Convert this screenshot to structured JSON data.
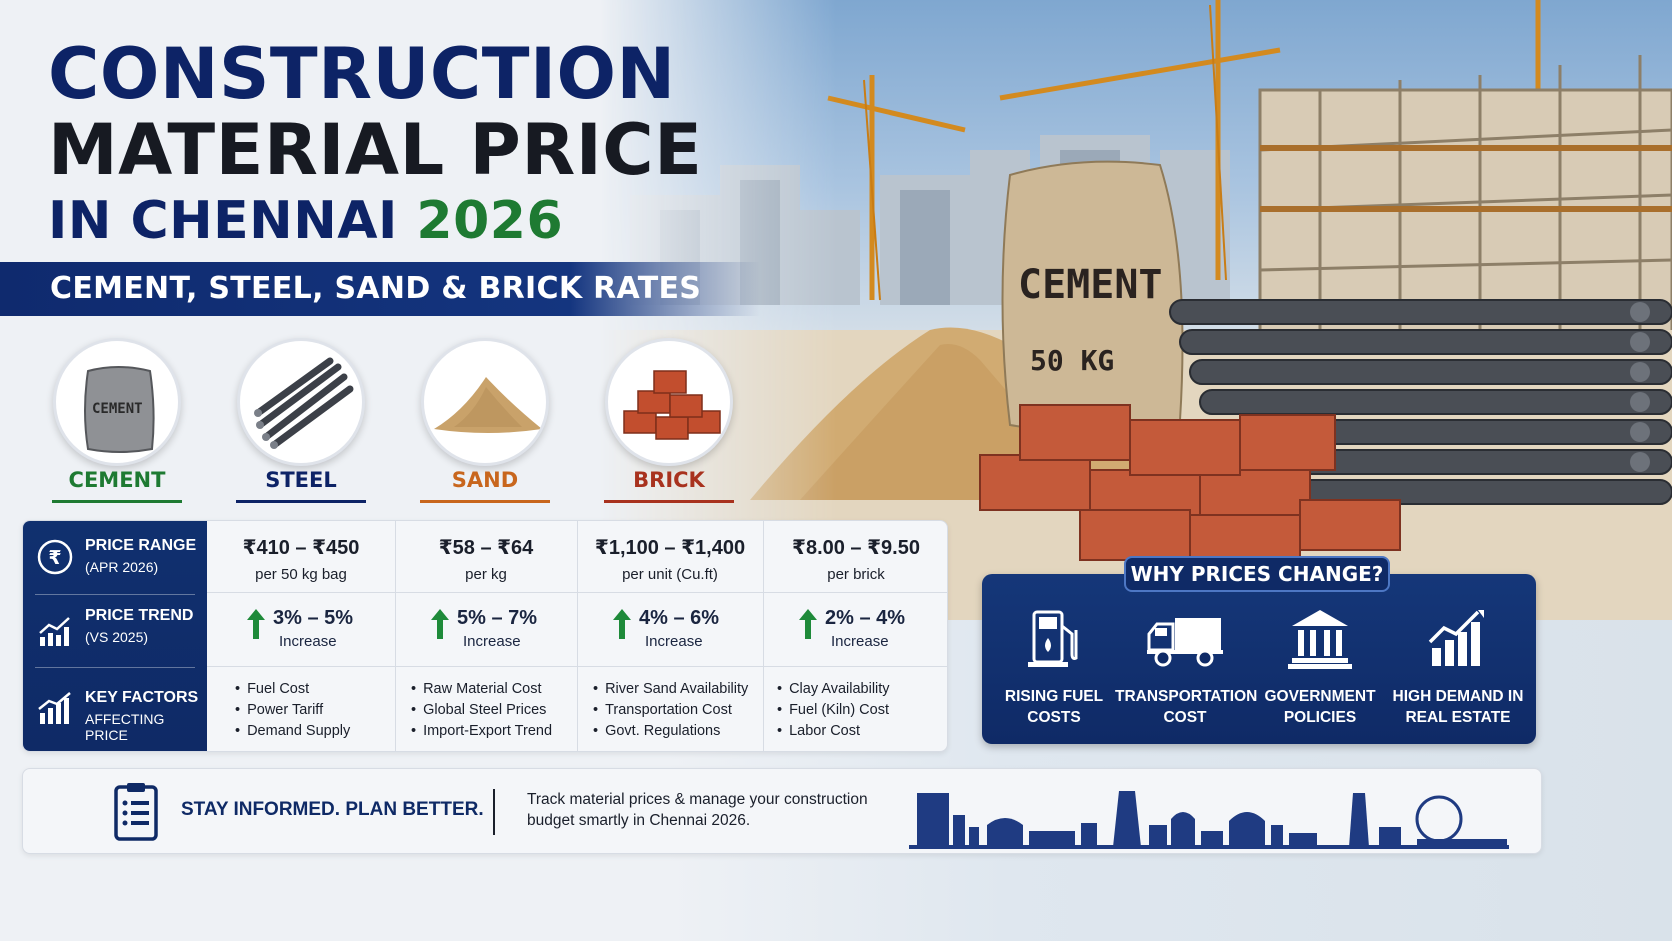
{
  "title": {
    "line1": "CONSTRUCTION",
    "line2": "MATERIAL PRICE",
    "line3_prefix": "IN CHENNAI",
    "line3_year": "2026"
  },
  "subtitle": "CEMENT, STEEL, SAND & BRICK RATES",
  "scene": {
    "cement_bag_text": "CEMENT",
    "cement_bag_weight": "50 KG"
  },
  "materials": [
    {
      "label": "CEMENT",
      "color": "#1e7a32",
      "icon": "cement-bag-icon",
      "bag_text": "CEMENT"
    },
    {
      "label": "STEEL",
      "color": "#0d2366",
      "icon": "steel-rods-icon"
    },
    {
      "label": "SAND",
      "color": "#c8661d",
      "icon": "sand-pile-icon"
    },
    {
      "label": "BRICK",
      "color": "#a8321e",
      "icon": "bricks-icon"
    }
  ],
  "table": {
    "rows": [
      {
        "title": "PRICE RANGE",
        "sub": "(APR 2026)",
        "icon": "rupee-icon"
      },
      {
        "title": "PRICE TREND",
        "sub": "(VS 2025)",
        "icon": "trend-chart-icon"
      },
      {
        "title": "KEY FACTORS",
        "sub": "AFFECTING PRICE",
        "icon": "growth-chart-icon"
      }
    ],
    "prices": [
      {
        "range": "₹410 – ₹450",
        "unit": "per 50 kg bag"
      },
      {
        "range": "₹58 – ₹64",
        "unit": "per kg"
      },
      {
        "range": "₹1,100 – ₹1,400",
        "unit": "per unit (Cu.ft)"
      },
      {
        "range": "₹8.00 – ₹9.50",
        "unit": "per brick"
      }
    ],
    "trends": [
      {
        "pct": "3% – 5%",
        "label": "Increase"
      },
      {
        "pct": "5% – 7%",
        "label": "Increase"
      },
      {
        "pct": "4% – 6%",
        "label": "Increase"
      },
      {
        "pct": "2% – 4%",
        "label": "Increase"
      }
    ],
    "factors": [
      [
        "Fuel Cost",
        "Power Tariff",
        "Demand Supply"
      ],
      [
        "Raw Material Cost",
        "Global Steel Prices",
        "Import-Export Trend"
      ],
      [
        "River Sand Availability",
        "Transportation Cost",
        "Govt. Regulations"
      ],
      [
        "Clay Availability",
        "Fuel (Kiln) Cost",
        "Labor Cost"
      ]
    ]
  },
  "why": {
    "heading": "WHY PRICES CHANGE?",
    "items": [
      {
        "line1": "RISING FUEL",
        "line2": "COSTS",
        "icon": "fuel-pump-icon"
      },
      {
        "line1": "TRANSPORTATION",
        "line2": "COST",
        "icon": "truck-icon"
      },
      {
        "line1": "GOVERNMENT",
        "line2": "POLICIES",
        "icon": "government-building-icon"
      },
      {
        "line1": "HIGH DEMAND IN",
        "line2": "REAL ESTATE",
        "icon": "rising-bar-chart-icon"
      }
    ]
  },
  "footer": {
    "tagline": "STAY INFORMED. PLAN BETTER.",
    "line1": "Track material prices & manage your construction",
    "line2": "budget smartly in Chennai 2026."
  },
  "colors": {
    "navy": "#0f2a66",
    "title_navy": "#0d2366",
    "green": "#1e7a32",
    "trend_arrow": "#1e8a3a"
  }
}
